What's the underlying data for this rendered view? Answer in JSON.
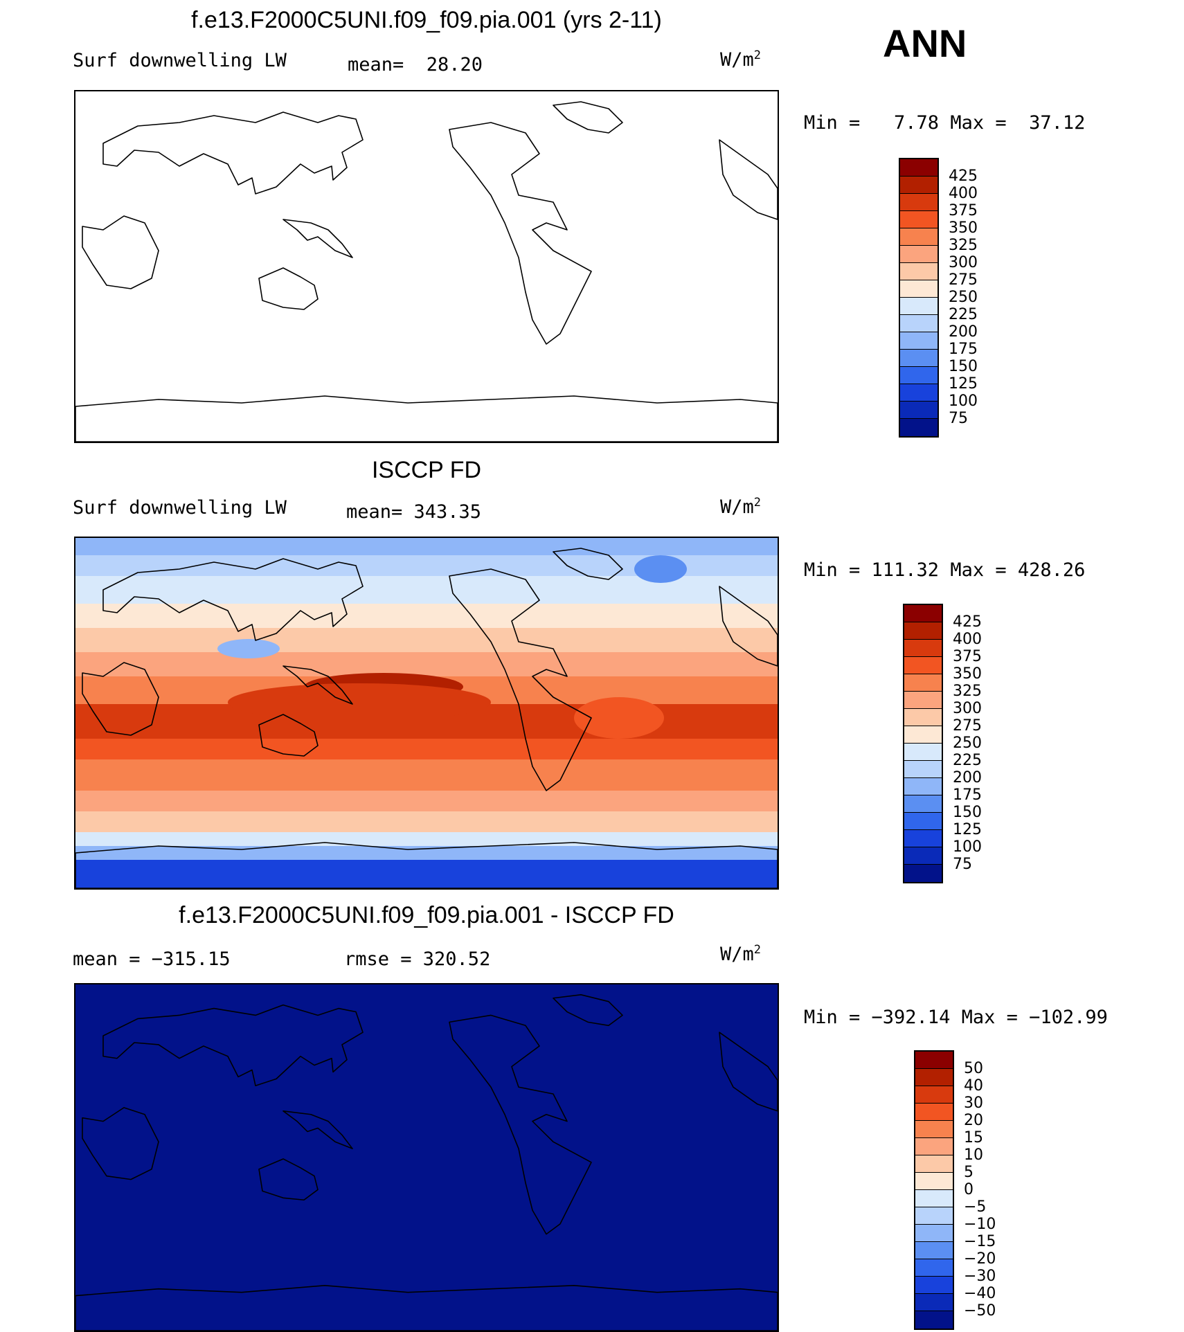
{
  "header": {
    "season": "ANN"
  },
  "panels": [
    {
      "title": "f.e13.F2000C5UNI.f09_f09.pia.001 (yrs 2-11)",
      "left_label": "Surf downwelling LW",
      "center_label": "mean=  28.20",
      "units": "W/m",
      "units_exp": "2",
      "minmax": "Min =   7.78 Max =  37.12",
      "fill": "none"
    },
    {
      "title": "ISCCP FD",
      "left_label": "Surf downwelling LW",
      "center_label": "mean= 343.35",
      "units": "W/m",
      "units_exp": "2",
      "minmax": "Min = 111.32 Max = 428.26",
      "fill": "field"
    },
    {
      "title": "f.e13.F2000C5UNI.f09_f09.pia.001 - ISCCP FD",
      "left_label": "mean = −315.15",
      "center_label": "rmse = 320.52",
      "units": "W/m",
      "units_exp": "2",
      "minmax": "Min = −392.14 Max = −102.99",
      "fill": "solid-low"
    }
  ],
  "colorbars": {
    "abs": {
      "labels": [
        "425",
        "400",
        "375",
        "350",
        "325",
        "300",
        "275",
        "250",
        "225",
        "200",
        "175",
        "150",
        "125",
        "100",
        "75"
      ],
      "colors": [
        "#8b0000",
        "#b22000",
        "#d83a0e",
        "#f25522",
        "#f7824e",
        "#fba47e",
        "#fcc9a8",
        "#fde8d5",
        "#d8e9fb",
        "#b8d3fb",
        "#8fb6f8",
        "#5b8ff2",
        "#3066ec",
        "#1842dc",
        "#0a2ab8",
        "#02128a"
      ]
    },
    "diff": {
      "labels": [
        "50",
        "40",
        "30",
        "20",
        "15",
        "10",
        "5",
        "0",
        "−5",
        "−10",
        "−15",
        "−20",
        "−30",
        "−40",
        "−50"
      ],
      "colors": [
        "#8b0000",
        "#b22000",
        "#d83a0e",
        "#f25522",
        "#f7824e",
        "#fba47e",
        "#fcc9a8",
        "#fde8d5",
        "#d8e9fb",
        "#b8d3fb",
        "#8fb6f8",
        "#5b8ff2",
        "#3066ec",
        "#1842dc",
        "#0a2ab8",
        "#02128a"
      ]
    }
  }
}
